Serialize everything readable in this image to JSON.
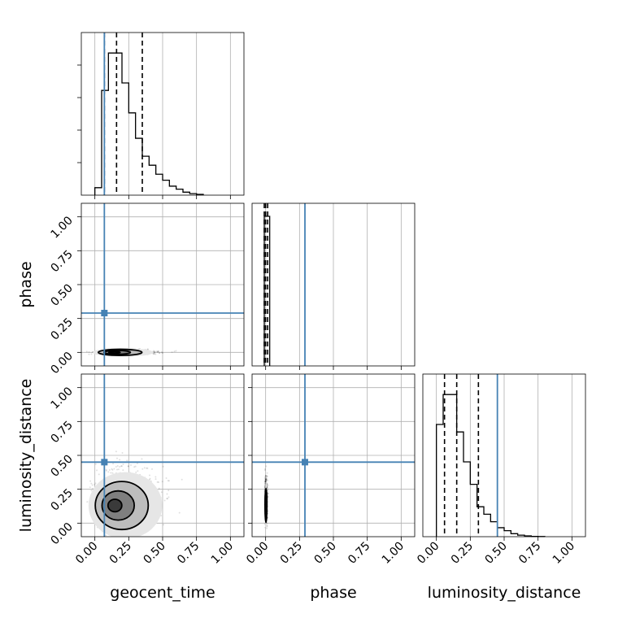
{
  "chart_data": {
    "type": "corner",
    "parameters": [
      "geocent_time",
      "phase",
      "luminosity_distance"
    ],
    "xlabels": [
      "geocent_time",
      "phase",
      "luminosity_distance"
    ],
    "ylabels": [
      "",
      "phase",
      "luminosity_distance"
    ],
    "tick_labels": [
      "0.00",
      "0.25",
      "0.50",
      "0.75",
      "1.00"
    ],
    "tick_values": [
      0,
      0.25,
      0.5,
      0.75,
      1.0
    ],
    "axis_range": [
      -0.1,
      1.1
    ],
    "grid": true,
    "truths": [
      0.07,
      0.29,
      0.45
    ],
    "truth_color": "#4682b4",
    "hist_color": "#000000",
    "histograms": [
      {
        "parameter": "geocent_time",
        "bin_start": 0.0,
        "bin_width": 0.05,
        "counts": [
          0.05,
          0.7,
          0.95,
          0.95,
          0.75,
          0.55,
          0.38,
          0.26,
          0.2,
          0.14,
          0.1,
          0.06,
          0.04,
          0.02,
          0.01,
          0.005
        ],
        "quantiles": [
          0.07,
          0.16,
          0.35
        ]
      },
      {
        "parameter": "phase",
        "bin_start": -0.01,
        "bin_width": 0.04,
        "counts": [
          1.0
        ],
        "quantiles": [
          -0.01,
          0.0,
          0.015
        ]
      },
      {
        "parameter": "luminosity_distance",
        "bin_start": 0.0,
        "bin_width": 0.05,
        "counts": [
          0.75,
          0.95,
          0.95,
          0.7,
          0.5,
          0.35,
          0.2,
          0.15,
          0.1,
          0.06,
          0.04,
          0.02,
          0.01,
          0.005,
          0.002,
          0.001
        ],
        "quantiles": [
          0.06,
          0.15,
          0.31
        ]
      }
    ],
    "density_panels": [
      {
        "x": "geocent_time",
        "y": "phase",
        "center": [
          0.13,
          0.0
        ],
        "spread": [
          0.14,
          0.012
        ]
      },
      {
        "x": "geocent_time",
        "y": "luminosity_distance",
        "center": [
          0.13,
          0.13
        ],
        "spread": [
          0.17,
          0.14
        ]
      },
      {
        "x": "phase",
        "y": "luminosity_distance",
        "center": [
          0.0,
          0.13
        ],
        "spread": [
          0.006,
          0.1
        ]
      }
    ]
  }
}
